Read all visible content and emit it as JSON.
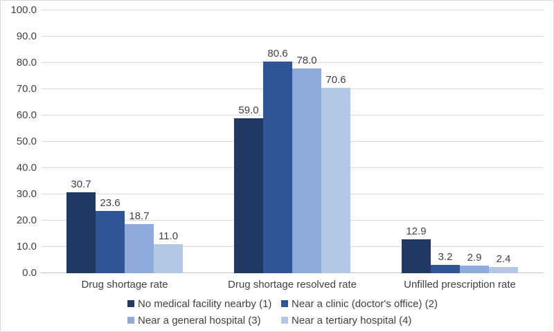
{
  "chart_data": {
    "type": "bar",
    "title": "",
    "xlabel": "",
    "ylabel": "",
    "categories": [
      "Drug shortage rate",
      "Drug shortage resolved rate",
      "Unfilled prescription rate"
    ],
    "series": [
      {
        "name": "No medical facility nearby (1)",
        "color": "#203864",
        "values": [
          30.7,
          59.0,
          12.9
        ]
      },
      {
        "name": "Near a clinic (doctor's office) (2)",
        "color": "#2F5597",
        "values": [
          23.6,
          80.6,
          3.2
        ]
      },
      {
        "name": "Near a general hospital (3)",
        "color": "#8FAADC",
        "values": [
          18.7,
          78.0,
          2.9
        ]
      },
      {
        "name": "Near a tertiary hospital (4)",
        "color": "#B4C7E7",
        "values": [
          11.0,
          70.6,
          2.4
        ]
      }
    ],
    "ylim": [
      0,
      100
    ],
    "ytick_step": 10,
    "ytick_decimals": 1,
    "value_label_decimals": 1,
    "grid": true,
    "legend_position": "bottom",
    "value_labels": true
  },
  "style": {
    "background": "#FFFFFF",
    "border_color": "#D9D9D9",
    "gridline_color": "#D9D9D9",
    "axis_line_color": "#BFBFBF",
    "text_color": "#404040"
  }
}
